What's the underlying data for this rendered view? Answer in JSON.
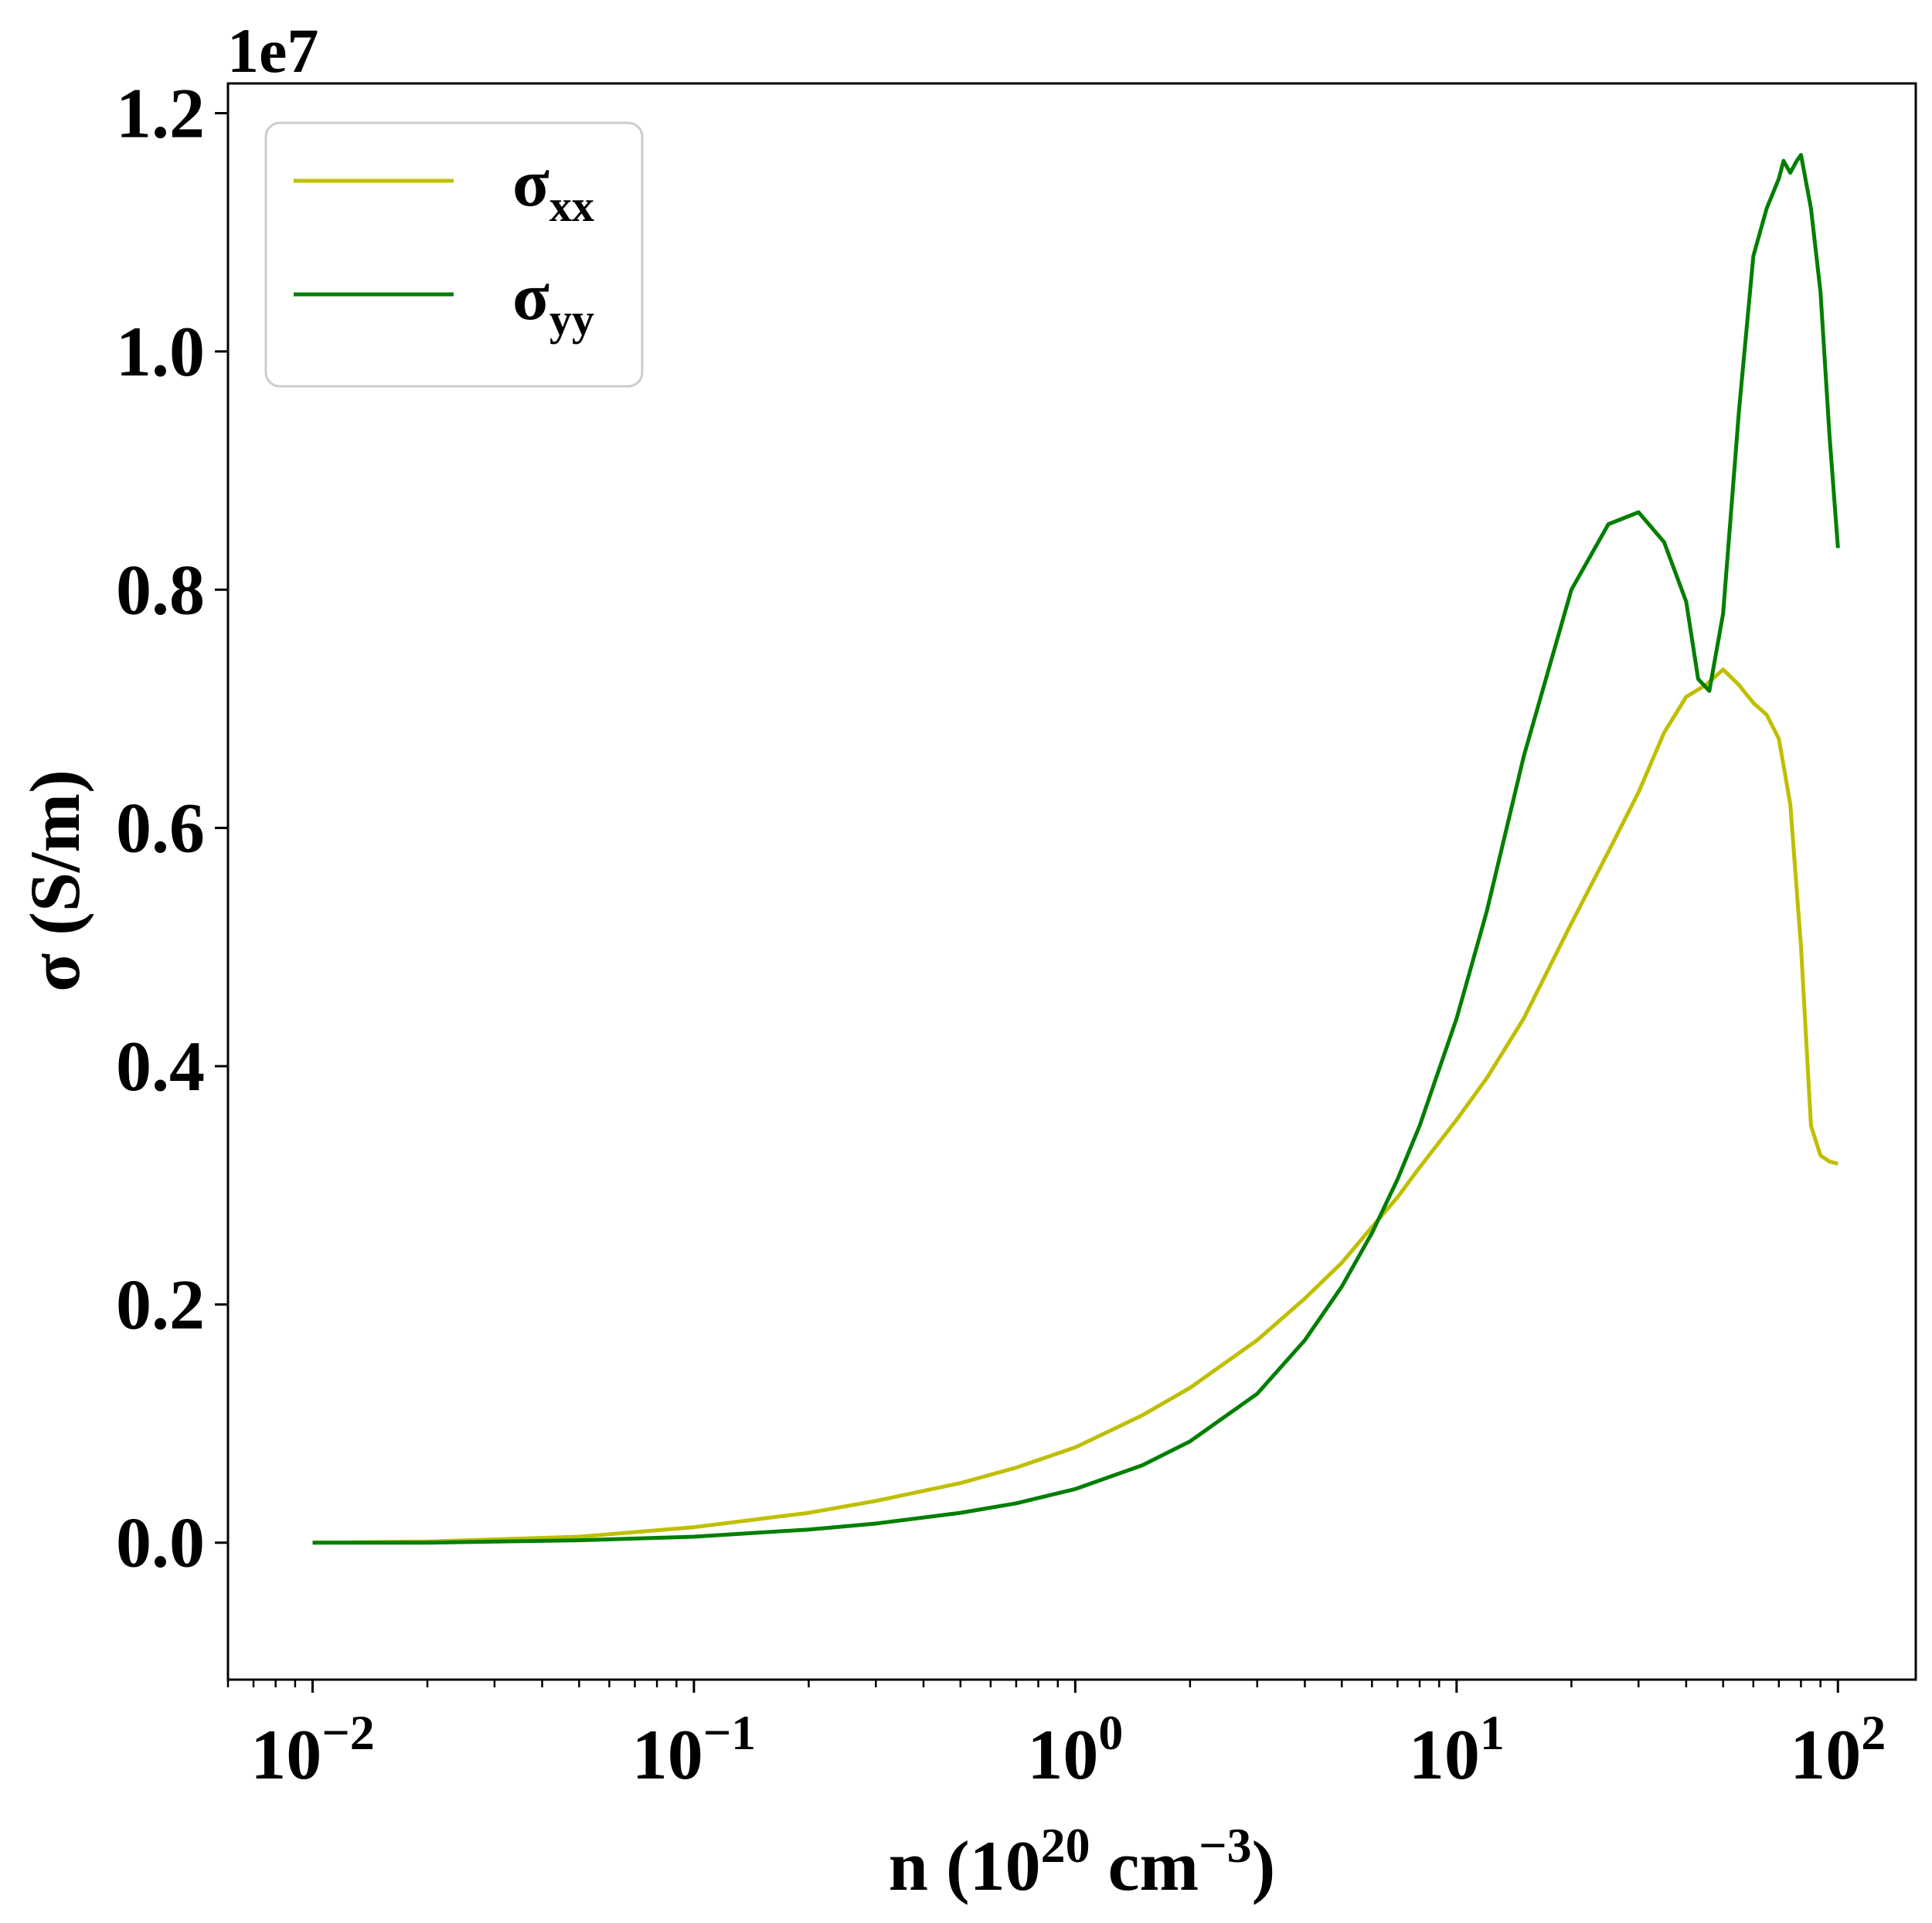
{
  "chart_data": {
    "type": "line",
    "title": "",
    "xlabel": "n (10^20 cm^-3)",
    "xlabel_parts": {
      "pre": "n (10",
      "sup1": "20",
      "mid": " cm",
      "sup2": "−3",
      "post": ")"
    },
    "ylabel": "σ (S/m)",
    "y_offset_label": "1e7",
    "xscale": "log",
    "xlim": [
      0.006,
      160
    ],
    "ylim": [
      -0.115,
      1.225
    ],
    "grid": false,
    "legend_position": "top-left",
    "x_ticks": [
      {
        "base": "10",
        "exp": "−2",
        "value": 0.01
      },
      {
        "base": "10",
        "exp": "−1",
        "value": 0.1
      },
      {
        "base": "10",
        "exp": "0",
        "value": 1
      },
      {
        "base": "10",
        "exp": "1",
        "value": 10
      },
      {
        "base": "10",
        "exp": "2",
        "value": 100
      }
    ],
    "y_ticks": [
      "0.0",
      "0.2",
      "0.4",
      "0.6",
      "0.8",
      "1.0",
      "1.2"
    ],
    "y_tick_values": [
      0.0,
      0.2,
      0.4,
      0.6,
      0.8,
      1.0,
      1.2
    ],
    "series": [
      {
        "name": "σ",
        "subscript": "xx",
        "color": "#bfbf00",
        "x": [
          0.01,
          0.02,
          0.05,
          0.1,
          0.2,
          0.3,
          0.5,
          0.7,
          1,
          1.5,
          2,
          3,
          4,
          5,
          6,
          7,
          8,
          10,
          12,
          15,
          20,
          25,
          30,
          35,
          40,
          45,
          50,
          55,
          60,
          65,
          70,
          75,
          80,
          85,
          90,
          95,
          100
        ],
        "values": [
          0.0,
          0.001,
          0.005,
          0.013,
          0.025,
          0.035,
          0.05,
          0.063,
          0.08,
          0.107,
          0.13,
          0.17,
          0.205,
          0.235,
          0.265,
          0.29,
          0.315,
          0.355,
          0.39,
          0.44,
          0.52,
          0.58,
          0.63,
          0.68,
          0.71,
          0.72,
          0.733,
          0.72,
          0.705,
          0.695,
          0.675,
          0.62,
          0.5,
          0.35,
          0.325,
          0.32,
          0.318
        ]
      },
      {
        "name": "σ",
        "subscript": "yy",
        "color": "#007f00",
        "x": [
          0.01,
          0.02,
          0.05,
          0.1,
          0.2,
          0.3,
          0.5,
          0.7,
          1,
          1.5,
          2,
          3,
          4,
          5,
          6,
          7,
          8,
          10,
          12,
          15,
          20,
          25,
          30,
          35,
          40,
          43,
          46,
          50,
          55,
          60,
          65,
          70,
          72,
          75,
          78,
          80,
          85,
          90,
          95,
          100
        ],
        "values": [
          0.0,
          0.0,
          0.002,
          0.005,
          0.011,
          0.016,
          0.025,
          0.033,
          0.045,
          0.065,
          0.085,
          0.125,
          0.17,
          0.215,
          0.26,
          0.305,
          0.35,
          0.44,
          0.53,
          0.66,
          0.8,
          0.855,
          0.865,
          0.84,
          0.79,
          0.725,
          0.715,
          0.78,
          0.95,
          1.08,
          1.12,
          1.145,
          1.16,
          1.15,
          1.16,
          1.165,
          1.12,
          1.05,
          0.93,
          0.835
        ]
      }
    ]
  }
}
